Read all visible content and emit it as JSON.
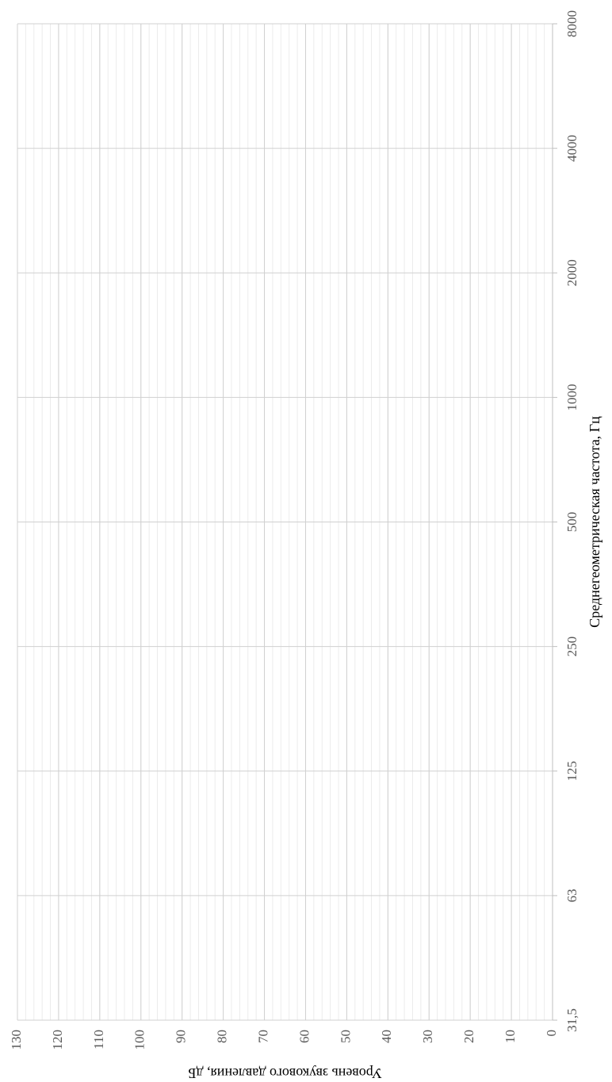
{
  "chart_data": {
    "type": "line",
    "categories": [
      "31,5",
      "63",
      "125",
      "250",
      "500",
      "1000",
      "2000",
      "4000",
      "8000"
    ],
    "series": [],
    "x_label": "Среднегеометрическая частота, Гц",
    "y_label": "Уровень звукового давления, дБ",
    "ylim": [
      0,
      130
    ],
    "yticks": [
      0,
      10,
      20,
      30,
      40,
      50,
      60,
      70,
      80,
      90,
      100,
      110,
      120,
      130
    ],
    "grid": true,
    "minor_grid": true,
    "rotation": -90
  }
}
